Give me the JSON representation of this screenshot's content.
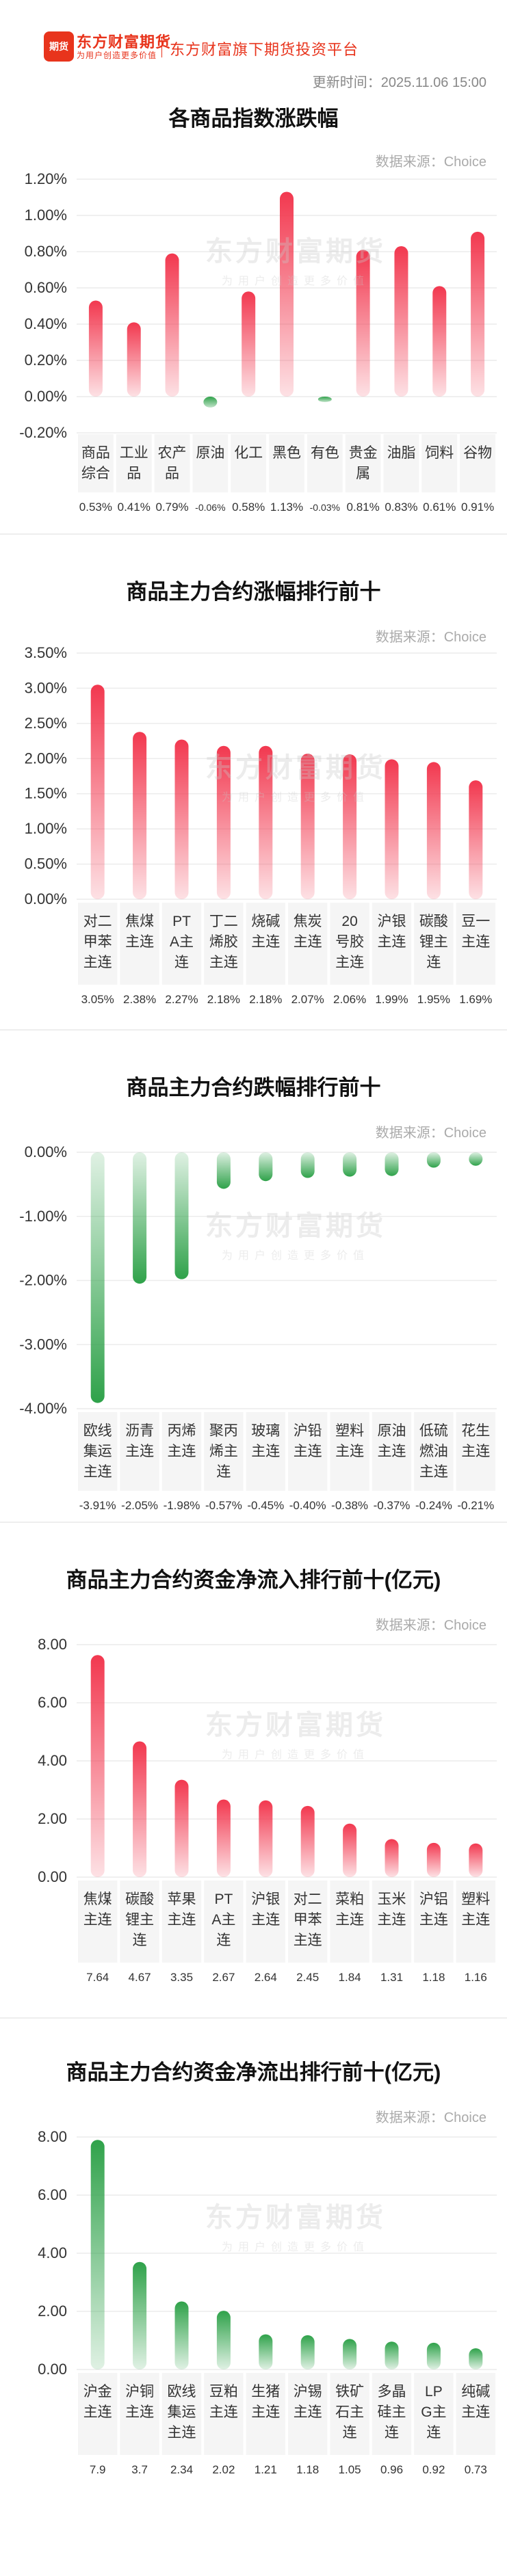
{
  "header": {
    "logo_mark": "期货",
    "brand_name": "东方财富期货",
    "brand_slogan": "为用户创造更多价值",
    "platform": "东方财富旗下期货投资平台",
    "update_label": "更新时间：",
    "update_time": "2025.11.06 15:00"
  },
  "source_label": "数据来源：Choice",
  "watermark": {
    "cn": "东方财富期货",
    "slogan": "为用户创造更多价值"
  },
  "colors": {
    "red": "#f2384f",
    "green": "#2fa24a",
    "text": "#333333"
  },
  "chart_data": [
    {
      "type": "bar",
      "title": "各商品指数涨跌幅",
      "unit": "%",
      "categories": [
        "商品综合",
        "工业品",
        "农产品",
        "原油",
        "化工",
        "黑色",
        "有色",
        "贵金属",
        "油脂",
        "饲料",
        "谷物"
      ],
      "values": [
        0.53,
        0.41,
        0.79,
        -0.06,
        0.58,
        1.13,
        -0.03,
        0.81,
        0.83,
        0.61,
        0.91
      ],
      "value_labels": [
        "0.53%",
        "0.41%",
        "0.79%",
        "-0.06%",
        "0.58%",
        "1.13%",
        "-0.03%",
        "0.81%",
        "0.83%",
        "0.61%",
        "0.91%"
      ],
      "yticks": [
        "1.20%",
        "1.00%",
        "0.80%",
        "0.60%",
        "0.40%",
        "0.20%",
        "0.00%",
        "-0.20%"
      ],
      "ylim": [
        -0.2,
        1.2
      ]
    },
    {
      "type": "bar",
      "title": "商品主力合约涨幅排行前十",
      "unit": "%",
      "categories": [
        "对二甲苯主连",
        "焦煤主连",
        "PTA主连",
        "丁二烯胶主连",
        "烧碱主连",
        "焦炭主连",
        "20号胶主连",
        "沪银主连",
        "碳酸锂主连",
        "豆一主连"
      ],
      "values": [
        3.05,
        2.38,
        2.27,
        2.18,
        2.18,
        2.07,
        2.06,
        1.99,
        1.95,
        1.69
      ],
      "value_labels": [
        "3.05%",
        "2.38%",
        "2.27%",
        "2.18%",
        "2.18%",
        "2.07%",
        "2.06%",
        "1.99%",
        "1.95%",
        "1.69%"
      ],
      "yticks": [
        "3.50%",
        "3.00%",
        "2.50%",
        "2.00%",
        "1.50%",
        "1.00%",
        "0.50%",
        "0.00%"
      ],
      "ylim": [
        0,
        3.5
      ]
    },
    {
      "type": "bar",
      "title": "商品主力合约跌幅排行前十",
      "unit": "%",
      "categories": [
        "欧线集运主连",
        "沥青主连",
        "丙烯主连",
        "聚丙烯主连",
        "玻璃主连",
        "沪铅主连",
        "塑料主连",
        "原油主连",
        "低硫燃油主连",
        "花生主连"
      ],
      "values": [
        -3.91,
        -2.05,
        -1.98,
        -0.57,
        -0.45,
        -0.4,
        -0.38,
        -0.37,
        -0.24,
        -0.21
      ],
      "value_labels": [
        "-3.91%",
        "-2.05%",
        "-1.98%",
        "-0.57%",
        "-0.45%",
        "-0.40%",
        "-0.38%",
        "-0.37%",
        "-0.24%",
        "-0.21%"
      ],
      "yticks": [
        "0.00%",
        "-1.00%",
        "-2.00%",
        "-3.00%",
        "-4.00%"
      ],
      "ylim": [
        -4,
        0
      ]
    },
    {
      "type": "bar",
      "title": "商品主力合约资金净流入排行前十(亿元)",
      "unit": "亿元",
      "categories": [
        "焦煤主连",
        "碳酸锂主连",
        "苹果主连",
        "PTA主连",
        "沪银主连",
        "对二甲苯主连",
        "菜粕主连",
        "玉米主连",
        "沪铝主连",
        "塑料主连"
      ],
      "values": [
        7.64,
        4.67,
        3.35,
        2.67,
        2.64,
        2.45,
        1.84,
        1.31,
        1.18,
        1.16
      ],
      "value_labels": [
        "7.64",
        "4.67",
        "3.35",
        "2.67",
        "2.64",
        "2.45",
        "1.84",
        "1.31",
        "1.18",
        "1.16"
      ],
      "yticks": [
        "8.00",
        "6.00",
        "4.00",
        "2.00",
        "0.00"
      ],
      "ylim": [
        0,
        8
      ]
    },
    {
      "type": "bar",
      "title": "商品主力合约资金净流出排行前十(亿元)",
      "unit": "亿元",
      "categories": [
        "沪金主连",
        "沪铜主连",
        "欧线集运主连",
        "豆粕主连",
        "生猪主连",
        "沪锡主连",
        "铁矿石主连",
        "多晶硅主连",
        "LPG主连",
        "纯碱主连"
      ],
      "values": [
        7.9,
        3.7,
        2.34,
        2.02,
        1.21,
        1.18,
        1.05,
        0.96,
        0.92,
        0.73
      ],
      "value_labels": [
        "7.9",
        "3.7",
        "2.34",
        "2.02",
        "1.21",
        "1.18",
        "1.05",
        "0.96",
        "0.92",
        "0.73"
      ],
      "yticks": [
        "8.00",
        "6.00",
        "4.00",
        "2.00",
        "0.00"
      ],
      "ylim": [
        0,
        8
      ]
    }
  ]
}
